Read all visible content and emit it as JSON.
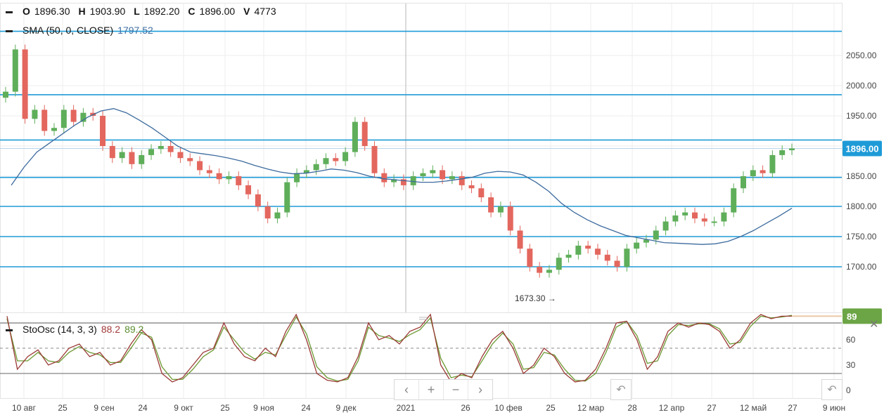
{
  "ohlc": {
    "o_label": "O",
    "o": "1896.30",
    "h_label": "H",
    "h": "1903.90",
    "l_label": "L",
    "l": "1892.20",
    "c_label": "C",
    "c": "1896.00",
    "v_label": "V",
    "v": "4773"
  },
  "sma": {
    "label": "SMA (50, 0, CLOSE)",
    "value": "1797.52"
  },
  "stoch": {
    "label": "StoOsc (14, 3, 3)",
    "k_value": "88.2",
    "d_value": "89.2",
    "current_badge": "89"
  },
  "price_badge": "1896.00",
  "low_annotation": "1673.30",
  "colors": {
    "up": "#5fae5a",
    "down": "#e3675e",
    "hline": "#1e9bd7",
    "sma": "#3d6b9e",
    "k": "#9b3b36",
    "d": "#6c9a33",
    "badge": "#1e9bd7",
    "sto_badge": "#6ca545"
  },
  "icons": {
    "prev": "chevron-left-icon",
    "zoom_in": "plus-icon",
    "zoom_out": "minus-icon",
    "next": "chevron-right-icon",
    "reset": "undo-icon",
    "close": "close-icon"
  },
  "chart_data": {
    "type": "candlestick",
    "price_axis": {
      "ticks": [
        1700,
        1750,
        1800,
        1850,
        1900,
        1950,
        2000,
        2050
      ],
      "tick_labels": [
        "1700.00",
        "1750.00",
        "1800.00",
        "1850.00",
        "",
        "1950.00",
        "2000.00",
        "2050.00"
      ]
    },
    "horizontal_levels": [
      2090,
      1985,
      1910,
      1848,
      1800,
      1750,
      1700
    ],
    "x_labels": [
      "10 авг",
      "25",
      "9 сен",
      "24",
      "9 окт",
      "25",
      "9 ноя",
      "24",
      "9 дек",
      "2021",
      "26",
      "10 фев",
      "25",
      "12 мар",
      "28",
      "12 апр",
      "27",
      "12 май",
      "27",
      "9 июн"
    ],
    "closes": [
      1990,
      2060,
      1945,
      1960,
      1925,
      1930,
      1960,
      1940,
      1955,
      1950,
      1900,
      1880,
      1890,
      1870,
      1885,
      1895,
      1900,
      1890,
      1880,
      1875,
      1860,
      1855,
      1845,
      1850,
      1835,
      1820,
      1800,
      1780,
      1790,
      1840,
      1855,
      1860,
      1870,
      1880,
      1875,
      1890,
      1940,
      1900,
      1855,
      1840,
      1845,
      1835,
      1850,
      1855,
      1860,
      1845,
      1850,
      1835,
      1830,
      1815,
      1790,
      1800,
      1760,
      1730,
      1700,
      1690,
      1695,
      1715,
      1720,
      1735,
      1730,
      1720,
      1710,
      1700,
      1730,
      1740,
      1745,
      1760,
      1775,
      1785,
      1790,
      1780,
      1775,
      1775,
      1790,
      1830,
      1850,
      1860,
      1855,
      1885,
      1893,
      1896
    ],
    "sma_values": [
      1835,
      1865,
      1890,
      1905,
      1920,
      1935,
      1948,
      1958,
      1962,
      1955,
      1943,
      1930,
      1915,
      1900,
      1890,
      1887,
      1884,
      1880,
      1875,
      1868,
      1862,
      1857,
      1854,
      1855,
      1858,
      1862,
      1860,
      1856,
      1850,
      1846,
      1844,
      1842,
      1840,
      1840,
      1842,
      1845,
      1848,
      1855,
      1858,
      1857,
      1852,
      1840,
      1825,
      1805,
      1790,
      1778,
      1768,
      1760,
      1752,
      1748,
      1744,
      1740,
      1739,
      1738,
      1737,
      1738,
      1742,
      1750,
      1760,
      1772,
      1784,
      1797
    ],
    "low_point": {
      "value": 1673.3
    },
    "stoch_axis": {
      "ticks": [
        0,
        30,
        60,
        89
      ],
      "tick_labels": [
        "0",
        "30",
        "60"
      ],
      "levels": [
        80,
        50,
        20
      ]
    },
    "stoch_k": [
      88,
      25,
      40,
      48,
      30,
      35,
      50,
      55,
      40,
      45,
      30,
      35,
      55,
      72,
      60,
      20,
      10,
      15,
      30,
      45,
      50,
      80,
      55,
      40,
      35,
      50,
      40,
      70,
      90,
      60,
      20,
      12,
      10,
      15,
      40,
      80,
      60,
      65,
      55,
      70,
      75,
      90,
      30,
      10,
      20,
      15,
      40,
      60,
      70,
      50,
      20,
      30,
      50,
      40,
      20,
      10,
      12,
      25,
      50,
      80,
      82,
      60,
      25,
      40,
      70,
      80,
      75,
      80,
      78,
      70,
      50,
      60,
      80,
      90,
      85,
      88,
      88
    ],
    "stoch_d": [
      85,
      35,
      35,
      45,
      35,
      33,
      45,
      52,
      45,
      42,
      33,
      33,
      50,
      68,
      63,
      28,
      13,
      13,
      25,
      40,
      48,
      75,
      60,
      45,
      37,
      45,
      42,
      65,
      87,
      67,
      28,
      15,
      11,
      13,
      35,
      75,
      65,
      62,
      58,
      66,
      72,
      86,
      38,
      15,
      18,
      16,
      35,
      55,
      68,
      55,
      25,
      27,
      45,
      42,
      25,
      12,
      11,
      20,
      45,
      75,
      82,
      65,
      32,
      35,
      65,
      78,
      77,
      79,
      79,
      73,
      55,
      57,
      76,
      88,
      86,
      87,
      89
    ]
  }
}
